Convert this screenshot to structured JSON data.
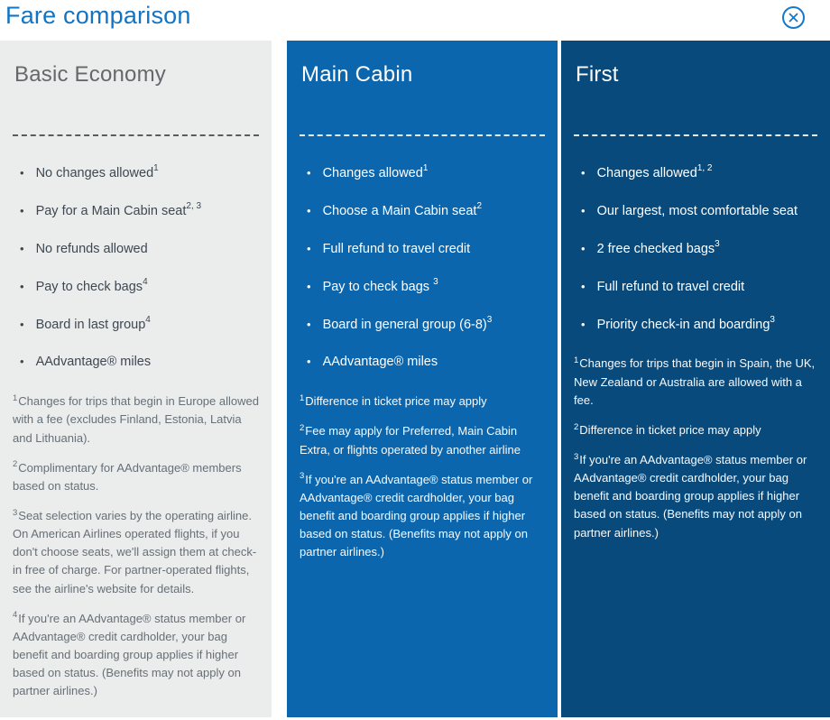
{
  "modal": {
    "title": "Fare comparison",
    "close_label": "Close"
  },
  "colors": {
    "title_blue": "#1374c4",
    "accent_blue": "#1479cc",
    "basic_bg": "#ebecec",
    "main_bg": "#0b66ad",
    "first_bg": "#084a7c",
    "dark_text": "#3d4852",
    "gray_header": "#66686b",
    "gray_footnote": "#667077",
    "divider_gray": "#595b5e"
  },
  "columns": [
    {
      "id": "basic-economy",
      "title": "Basic Economy",
      "theme": "light",
      "bullets": [
        {
          "text": "No changes allowed",
          "sup": "1"
        },
        {
          "text": "Pay for a Main Cabin seat",
          "sup": "2, 3"
        },
        {
          "text": "No refunds allowed",
          "sup": ""
        },
        {
          "text": "Pay to check bags",
          "sup": "4"
        },
        {
          "text": "Board in last group",
          "sup": "4"
        },
        {
          "text": "AAdvantage® miles",
          "sup": ""
        }
      ],
      "footnotes": [
        {
          "sup": "1",
          "text": "Changes for trips that begin in Europe allowed with a fee (excludes Finland, Estonia, Latvia and Lithuania)."
        },
        {
          "sup": "2",
          "text": "Complimentary for AAdvantage® members based on status."
        },
        {
          "sup": "3",
          "text": "Seat selection varies by the operating airline. On American Airlines operated flights, if you don't choose seats, we'll assign them at check-in free of charge. For partner-operated flights, see the airline's website for details."
        },
        {
          "sup": "4",
          "text": "If you're an AAdvantage® status member or AAdvantage® credit cardholder, your bag benefit and boarding group applies if higher based on status. (Benefits may not apply on partner airlines.)"
        }
      ]
    },
    {
      "id": "main-cabin",
      "title": "Main Cabin",
      "theme": "blue",
      "bullets": [
        {
          "text": "Changes allowed",
          "sup": "1"
        },
        {
          "text": "Choose a Main Cabin seat",
          "sup": "2"
        },
        {
          "text": "Full refund to travel credit",
          "sup": ""
        },
        {
          "text": "Pay to check bags ",
          "sup": "3"
        },
        {
          "text": "Board in general group (6-8)",
          "sup": "3"
        },
        {
          "text": "AAdvantage® miles",
          "sup": ""
        }
      ],
      "footnotes": [
        {
          "sup": "1",
          "text": "Difference in ticket price may apply"
        },
        {
          "sup": "2",
          "text": "Fee may apply for Preferred, Main Cabin Extra, or flights operated by another airline"
        },
        {
          "sup": "3",
          "text": "If you're an AAdvantage® status member or AAdvantage® credit cardholder, your bag benefit and boarding group applies if higher based on status. (Benefits may not apply on partner airlines.)"
        }
      ]
    },
    {
      "id": "first",
      "title": "First",
      "theme": "navy",
      "bullets": [
        {
          "text": "Changes allowed",
          "sup": "1, 2"
        },
        {
          "text": "Our largest, most comfortable seat",
          "sup": ""
        },
        {
          "text": "2 free checked bags",
          "sup": "3"
        },
        {
          "text": "Full refund to travel credit",
          "sup": ""
        },
        {
          "text": "Priority check-in and boarding",
          "sup": "3"
        }
      ],
      "footnotes": [
        {
          "sup": "1",
          "text": "Changes for trips that begin in Spain, the UK, New Zealand or Australia are allowed with a fee."
        },
        {
          "sup": "2",
          "text": "Difference in ticket price may apply"
        },
        {
          "sup": "3",
          "text": "If you're an AAdvantage® status member or AAdvantage® credit cardholder, your bag benefit and boarding group applies if higher based on status. (Benefits may not apply on partner airlines.)"
        }
      ]
    }
  ]
}
